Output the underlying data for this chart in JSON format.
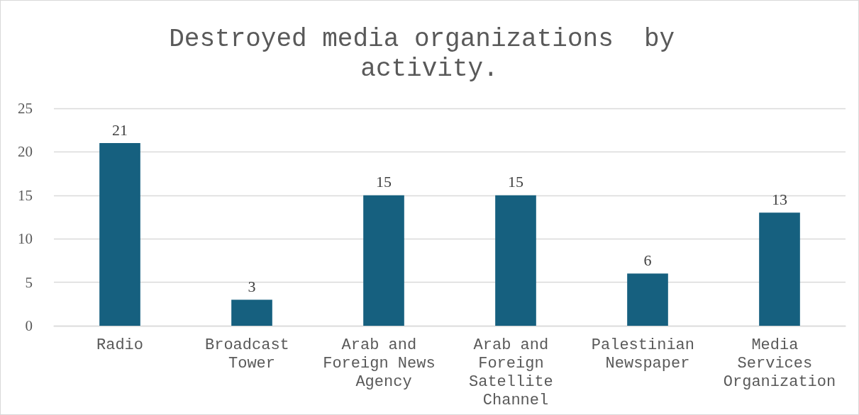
{
  "chart_data": {
    "type": "bar",
    "title": "Destroyed media organizations  by activity.",
    "categories": [
      "Radio",
      "Broadcast Tower",
      "Arab and Foreign News Agency",
      "Arab and Foreign Satellite Channel",
      "Palestinian Newspaper",
      "Media Services Organization"
    ],
    "values": [
      21,
      3,
      15,
      15,
      6,
      13
    ],
    "color": "#16607f",
    "ylim": [
      0,
      25
    ],
    "yticks": [
      0,
      5,
      10,
      15,
      20,
      25
    ],
    "grid": "y",
    "data_labels": true
  }
}
